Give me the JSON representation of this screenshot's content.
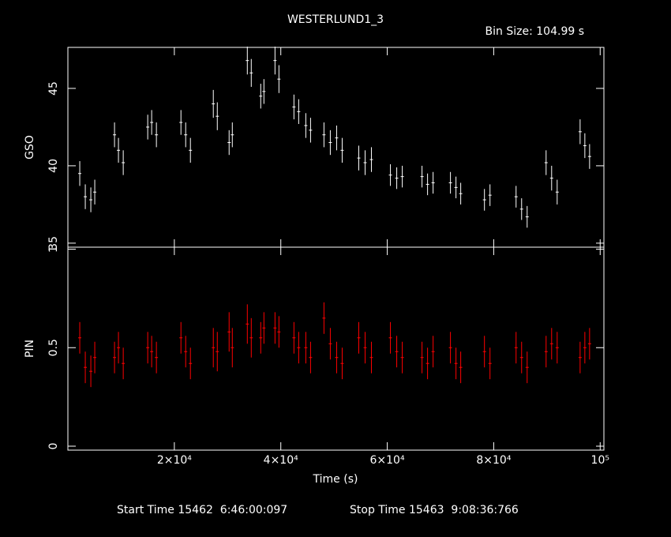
{
  "chart_data": [
    {
      "type": "errorbar",
      "title": "WESTERLUND1_3",
      "subtitle": "Bin Size: 104.99 s",
      "ylabel": "GSO",
      "color": "#ffffff",
      "x": [
        2230,
        3270,
        4310,
        5050,
        8760,
        9500,
        10400,
        15000,
        15740,
        16630,
        21240,
        22130,
        23020,
        27320,
        28070,
        30290,
        30890,
        33710,
        34450,
        36230,
        36830,
        38910,
        39650,
        42470,
        43360,
        44700,
        45590,
        48110,
        49300,
        50490,
        51530,
        54650,
        55840,
        57020,
        60590,
        61780,
        62820,
        66530,
        67570,
        68610,
        71870,
        72910,
        73800,
        78260,
        79300,
        84200,
        85240,
        86280,
        89840,
        90880,
        91920,
        96230,
        97120,
        98010
      ],
      "values": [
        39.5,
        38,
        37.8,
        38.3,
        42,
        41,
        40.2,
        42.5,
        42.8,
        42,
        42.8,
        42,
        41,
        44,
        43.2,
        41.5,
        42,
        46.8,
        46,
        44.5,
        44.8,
        46.8,
        45.6,
        43.8,
        43.5,
        42.6,
        42.3,
        42,
        41.5,
        41.8,
        41,
        40.5,
        40.2,
        40.4,
        39.4,
        39.2,
        39.3,
        39.3,
        38.8,
        38.9,
        38.9,
        38.6,
        38.2,
        37.8,
        38.1,
        38,
        37.2,
        36.7,
        40.2,
        39.2,
        38.3,
        42.2,
        41.3,
        40.6
      ],
      "errors": [
        0.8,
        0.8,
        0.8,
        0.8,
        0.8,
        0.8,
        0.8,
        0.8,
        0.8,
        0.8,
        0.8,
        0.8,
        0.8,
        0.9,
        0.9,
        0.8,
        0.8,
        0.9,
        0.9,
        0.8,
        0.8,
        0.9,
        0.9,
        0.8,
        0.8,
        0.8,
        0.8,
        0.8,
        0.8,
        0.8,
        0.8,
        0.8,
        0.8,
        0.8,
        0.7,
        0.7,
        0.7,
        0.7,
        0.7,
        0.7,
        0.7,
        0.7,
        0.7,
        0.7,
        0.7,
        0.7,
        0.7,
        0.7,
        0.8,
        0.8,
        0.8,
        0.8,
        0.8,
        0.8
      ],
      "xlim": [
        0,
        100700
      ],
      "ylim": [
        34.74,
        47.65
      ],
      "yticks": [
        35,
        40,
        45
      ]
    },
    {
      "type": "errorbar",
      "ylabel": "PIN",
      "xlabel": "Time (s)",
      "color": "#ff0000",
      "x": [
        2230,
        3270,
        4310,
        5050,
        8760,
        9500,
        10400,
        15000,
        15740,
        16630,
        21240,
        22130,
        23020,
        27320,
        28070,
        30290,
        30890,
        33710,
        34450,
        36230,
        36830,
        38910,
        39650,
        42470,
        43360,
        44700,
        45590,
        48110,
        49300,
        50490,
        51530,
        54650,
        55840,
        57020,
        60590,
        61780,
        62820,
        66530,
        67570,
        68610,
        71870,
        72910,
        73800,
        78260,
        79300,
        84200,
        85240,
        86280,
        89840,
        90880,
        91920,
        96230,
        97120,
        98010
      ],
      "values": [
        0.55,
        0.4,
        0.38,
        0.45,
        0.45,
        0.5,
        0.42,
        0.5,
        0.48,
        0.45,
        0.55,
        0.48,
        0.42,
        0.5,
        0.48,
        0.58,
        0.5,
        0.62,
        0.55,
        0.55,
        0.6,
        0.6,
        0.58,
        0.55,
        0.5,
        0.5,
        0.45,
        0.65,
        0.52,
        0.45,
        0.42,
        0.55,
        0.5,
        0.45,
        0.55,
        0.48,
        0.45,
        0.45,
        0.42,
        0.48,
        0.5,
        0.42,
        0.4,
        0.48,
        0.42,
        0.5,
        0.45,
        0.4,
        0.48,
        0.52,
        0.5,
        0.45,
        0.5,
        0.52
      ],
      "errors": [
        0.08,
        0.08,
        0.08,
        0.08,
        0.08,
        0.08,
        0.08,
        0.08,
        0.08,
        0.08,
        0.08,
        0.08,
        0.08,
        0.1,
        0.1,
        0.1,
        0.1,
        0.1,
        0.1,
        0.08,
        0.08,
        0.08,
        0.08,
        0.08,
        0.08,
        0.08,
        0.08,
        0.08,
        0.08,
        0.08,
        0.08,
        0.08,
        0.08,
        0.08,
        0.08,
        0.08,
        0.08,
        0.08,
        0.08,
        0.08,
        0.08,
        0.08,
        0.08,
        0.08,
        0.08,
        0.08,
        0.08,
        0.08,
        0.08,
        0.08,
        0.08,
        0.08,
        0.08,
        0.08
      ],
      "xlim": [
        0,
        100700
      ],
      "ylim": [
        -0.02,
        1.01
      ],
      "yticks": [
        0,
        0.5,
        1
      ],
      "xticks": [
        {
          "value": 20000,
          "label": "2×10⁴"
        },
        {
          "value": 40000,
          "label": "4×10⁴"
        },
        {
          "value": 60000,
          "label": "6×10⁴"
        },
        {
          "value": 80000,
          "label": "8×10⁴"
        },
        {
          "value": 100000,
          "label": "10⁵"
        }
      ],
      "start_time": "Start Time 15462  6:46:00:097",
      "stop_time": "Stop Time 15463  9:08:36:766"
    }
  ]
}
